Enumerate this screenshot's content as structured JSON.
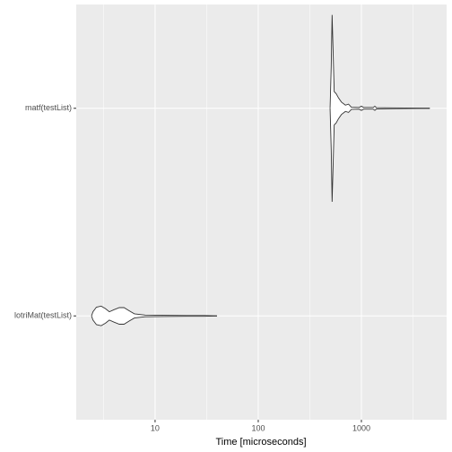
{
  "chart_data": {
    "type": "violin",
    "xlabel": "Time [microseconds]",
    "categories": [
      "lotriMat(testList)",
      "matf(testList)"
    ],
    "log_x": true,
    "xlim": [
      1.72,
      6700
    ],
    "xticks": [
      10,
      100,
      1000
    ],
    "grid": true,
    "fill": "#ffffff",
    "stroke": "#333333",
    "violins": [
      {
        "x": [
          2.42,
          2.5,
          2.7,
          3.0,
          3.3,
          3.6,
          4.0,
          4.5,
          5.0,
          5.6,
          6.3,
          8,
          12,
          20,
          30,
          39.8
        ],
        "widths": [
          0,
          0.02,
          0.042,
          0.047,
          0.035,
          0.02,
          0.03,
          0.04,
          0.04,
          0.025,
          0.01,
          0.004,
          0.003,
          0.002,
          0.002,
          0
        ]
      },
      {
        "x": [
          497,
          510,
          520,
          530,
          545,
          570,
          600,
          640,
          700,
          750,
          800,
          950,
          1000,
          1050,
          1300,
          1350,
          1400,
          2000,
          4600
        ],
        "widths": [
          0,
          0.2,
          0.45,
          0.3,
          0.08,
          0.07,
          0.05,
          0.03,
          0.015,
          0.02,
          0.005,
          0.004,
          0.01,
          0.004,
          0.004,
          0.01,
          0.003,
          0.002,
          0
        ]
      }
    ]
  }
}
